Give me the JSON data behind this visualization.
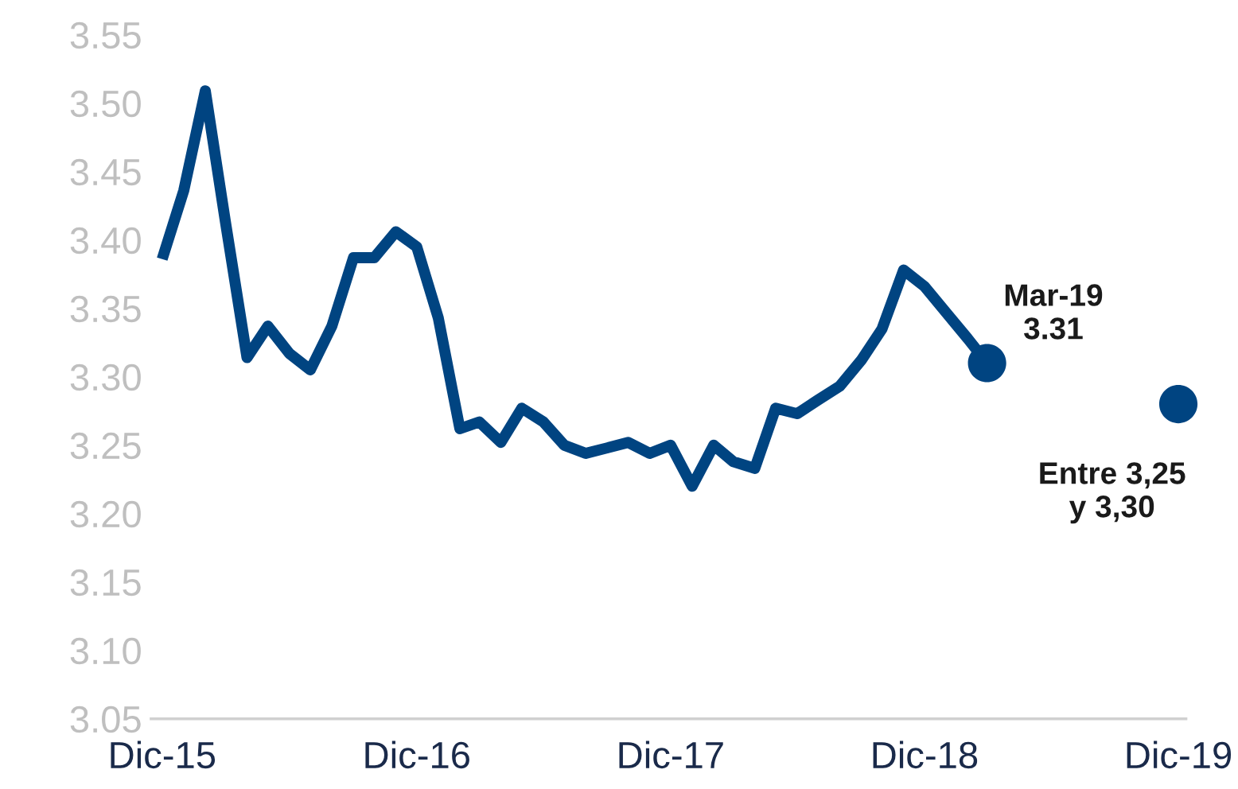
{
  "chart_data": {
    "type": "line",
    "series": [
      {
        "color": "#004481",
        "marker": "none",
        "x": [
          "2015-12",
          "2016-01",
          "2016-02",
          "2016-03",
          "2016-04",
          "2016-05",
          "2016-06",
          "2016-07",
          "2016-08",
          "2016-09",
          "2016-10",
          "2016-11",
          "2016-12",
          "2017-01",
          "2017-02",
          "2017-03",
          "2017-04",
          "2017-05",
          "2017-06",
          "2017-07",
          "2017-08",
          "2017-09",
          "2017-10",
          "2017-11",
          "2017-12",
          "2018-01",
          "2018-02",
          "2018-03",
          "2018-04",
          "2018-05",
          "2018-06",
          "2018-07",
          "2018-08",
          "2018-09",
          "2018-10",
          "2018-11",
          "2018-12",
          "2019-01",
          "2019-02",
          "2019-03"
        ],
        "values": [
          3.386,
          3.436,
          3.509,
          3.413,
          3.314,
          3.337,
          3.317,
          3.305,
          3.337,
          3.387,
          3.387,
          3.406,
          3.395,
          3.343,
          3.262,
          3.267,
          3.252,
          3.277,
          3.267,
          3.25,
          3.244,
          3.248,
          3.252,
          3.244,
          3.25,
          3.22,
          3.25,
          3.238,
          3.233,
          3.277,
          3.273,
          3.283,
          3.293,
          3.312,
          3.335,
          3.378,
          3.366,
          3.347,
          3.328,
          3.31
        ]
      },
      {
        "type": "scatter",
        "color": "#004481",
        "marker": "circle",
        "x": [
          "2019-03",
          "2019-12"
        ],
        "values": [
          3.31,
          3.28
        ]
      }
    ],
    "xlim": [
      "2015-11-15",
      "2019-12-12"
    ],
    "xticks": [
      {
        "value": "2015-12",
        "label": "Dic-15"
      },
      {
        "value": "2016-12",
        "label": "Dic-16"
      },
      {
        "value": "2017-12",
        "label": "Dic-17"
      },
      {
        "value": "2018-12",
        "label": "Dic-18"
      },
      {
        "value": "2019-12",
        "label": "Dic-19"
      }
    ],
    "ylim": [
      3.05,
      3.55
    ],
    "yticks": [
      {
        "value": 3.05,
        "label": "3.05"
      },
      {
        "value": 3.1,
        "label": "3.10"
      },
      {
        "value": 3.15,
        "label": "3.15"
      },
      {
        "value": 3.2,
        "label": "3.20"
      },
      {
        "value": 3.25,
        "label": "3.25"
      },
      {
        "value": 3.3,
        "label": "3.30"
      },
      {
        "value": 3.35,
        "label": "3.35"
      },
      {
        "value": 3.4,
        "label": "3.40"
      },
      {
        "value": 3.45,
        "label": "3.45"
      },
      {
        "value": 3.5,
        "label": "3.50"
      },
      {
        "value": 3.55,
        "label": "3.55"
      }
    ],
    "grid": false,
    "legend": false,
    "annotations": [
      {
        "text": "Mar-19\n3.31",
        "x": "2019-03",
        "y": 3.31
      },
      {
        "text": "Entre 3,25\ny 3,30",
        "x": "2019-12",
        "y": 3.28
      }
    ]
  }
}
